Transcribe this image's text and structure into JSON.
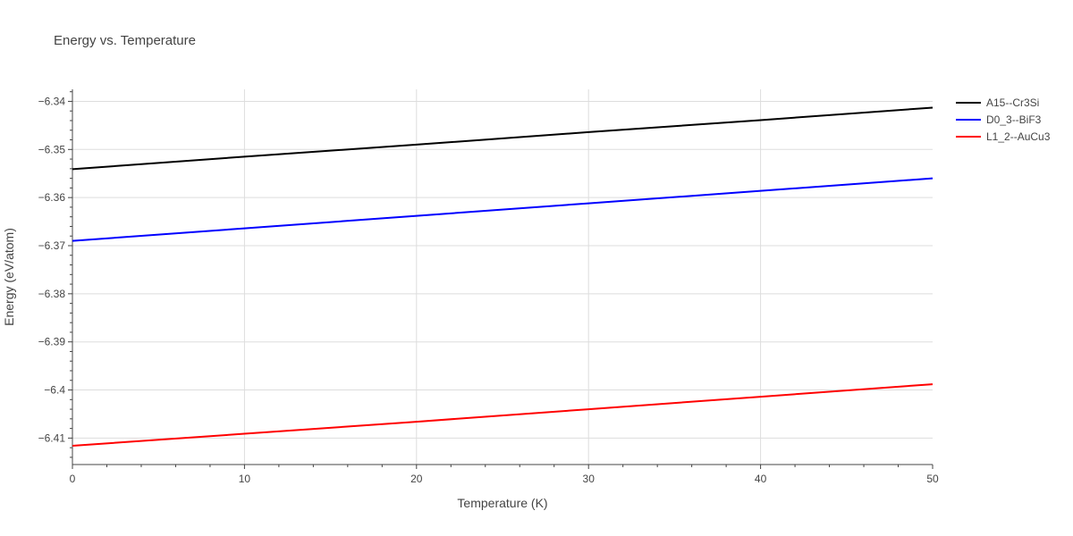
{
  "chart_data": {
    "type": "line",
    "title": "Energy vs. Temperature",
    "xlabel": "Temperature (K)",
    "ylabel": "Energy (eV/atom)",
    "xlim": [
      0,
      50
    ],
    "ylim": [
      -6.4155,
      -6.3375
    ],
    "x_ticks": [
      0,
      10,
      20,
      30,
      40,
      50
    ],
    "x_tick_labels": [
      "0",
      "10",
      "20",
      "30",
      "40",
      "50"
    ],
    "y_ticks": [
      -6.34,
      -6.35,
      -6.36,
      -6.37,
      -6.38,
      -6.39,
      -6.4,
      -6.41
    ],
    "y_tick_labels": [
      "−6.34",
      "−6.35",
      "−6.36",
      "−6.37",
      "−6.38",
      "−6.39",
      "−6.4",
      "−6.41"
    ],
    "grid": true,
    "legend_position": "top-right",
    "series": [
      {
        "name": "A15--Cr3Si",
        "color": "#000000",
        "x": [
          0,
          10,
          20,
          30,
          40,
          50
        ],
        "y": [
          -6.3541,
          -6.3515,
          -6.349,
          -6.3464,
          -6.3439,
          -6.3413
        ]
      },
      {
        "name": "D0_3--BiF3",
        "color": "#0000ff",
        "x": [
          0,
          10,
          20,
          30,
          40,
          50
        ],
        "y": [
          -6.369,
          -6.3664,
          -6.3638,
          -6.3612,
          -6.3586,
          -6.356
        ]
      },
      {
        "name": "L1_2--AuCu3",
        "color": "#ff0000",
        "x": [
          0,
          10,
          20,
          30,
          40,
          50
        ],
        "y": [
          -6.4116,
          -6.4091,
          -6.4066,
          -6.404,
          -6.4014,
          -6.3988
        ]
      }
    ]
  }
}
